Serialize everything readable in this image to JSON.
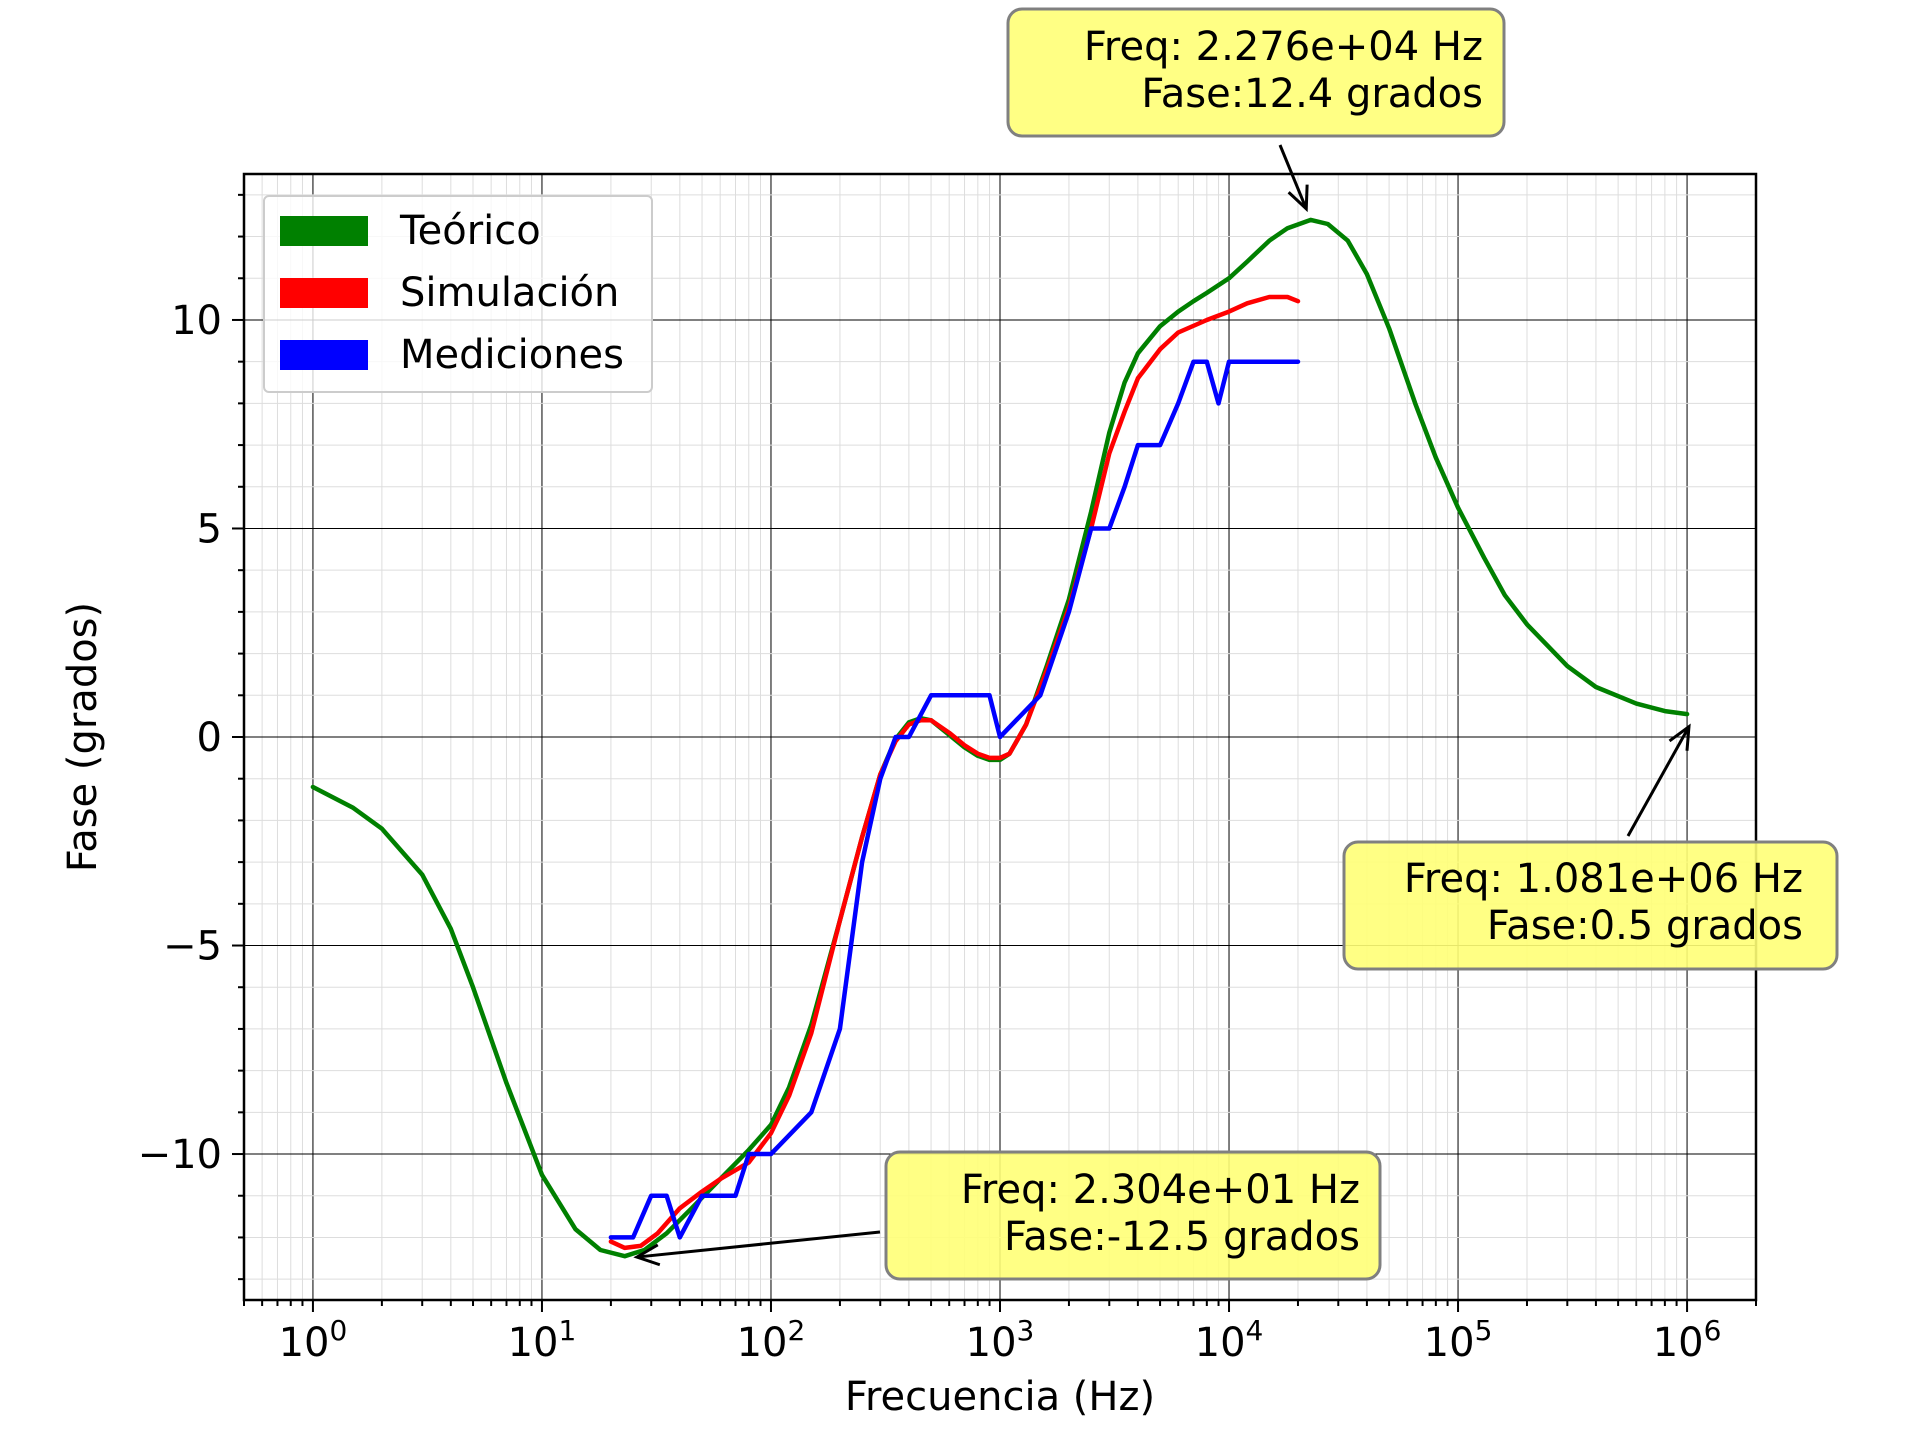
{
  "chart_data": {
    "type": "line",
    "xscale": "log",
    "xlabel": "Frecuencia (Hz)",
    "ylabel": "Fase (grados)",
    "xlim": [
      0.5,
      2000000
    ],
    "ylim": [
      -13.5,
      13.5
    ],
    "grid": "major and minor",
    "legend_position": "top-left",
    "x_ticks": [
      {
        "value": 1,
        "base": "10",
        "exp": "0"
      },
      {
        "value": 10,
        "base": "10",
        "exp": "1"
      },
      {
        "value": 100,
        "base": "10",
        "exp": "2"
      },
      {
        "value": 1000,
        "base": "10",
        "exp": "3"
      },
      {
        "value": 10000,
        "base": "10",
        "exp": "4"
      },
      {
        "value": 100000,
        "base": "10",
        "exp": "5"
      },
      {
        "value": 1000000,
        "base": "10",
        "exp": "6"
      }
    ],
    "y_ticks": [
      {
        "value": -10,
        "label": "−10"
      },
      {
        "value": -5,
        "label": "−5"
      },
      {
        "value": 0,
        "label": "0"
      },
      {
        "value": 5,
        "label": "5"
      },
      {
        "value": 10,
        "label": "10"
      }
    ],
    "series": [
      {
        "name": "Teórico",
        "color": "#008000",
        "x": [
          1,
          1.5,
          2,
          3,
          4,
          5,
          7,
          10,
          14,
          18,
          23,
          28,
          35,
          45,
          60,
          80,
          100,
          120,
          150,
          200,
          250,
          300,
          350,
          400,
          450,
          500,
          600,
          700,
          800,
          900,
          1000,
          1100,
          1300,
          1600,
          2000,
          2500,
          3000,
          3500,
          4000,
          5000,
          6000,
          7000,
          8000,
          10000,
          12000,
          15000,
          18000,
          22760,
          27000,
          33000,
          40000,
          50000,
          65000,
          80000,
          100000,
          130000,
          160000,
          200000,
          300000,
          400000,
          600000,
          800000,
          1000000
        ],
        "y": [
          -1.2,
          -1.7,
          -2.2,
          -3.3,
          -4.6,
          -6.0,
          -8.3,
          -10.5,
          -11.8,
          -12.3,
          -12.45,
          -12.3,
          -11.9,
          -11.3,
          -10.6,
          -9.9,
          -9.3,
          -8.4,
          -6.9,
          -4.4,
          -2.4,
          -0.9,
          -0.05,
          0.35,
          0.45,
          0.4,
          0.05,
          -0.25,
          -0.45,
          -0.55,
          -0.55,
          -0.4,
          0.3,
          1.7,
          3.3,
          5.4,
          7.3,
          8.5,
          9.2,
          9.85,
          10.2,
          10.45,
          10.65,
          11.0,
          11.4,
          11.9,
          12.2,
          12.4,
          12.3,
          11.9,
          11.1,
          9.8,
          8.0,
          6.7,
          5.5,
          4.3,
          3.4,
          2.7,
          1.7,
          1.2,
          0.8,
          0.62,
          0.55
        ]
      },
      {
        "name": "Simulación",
        "color": "#ff0000",
        "x": [
          20,
          23,
          27,
          32,
          40,
          50,
          60,
          80,
          100,
          120,
          150,
          200,
          250,
          300,
          350,
          400,
          450,
          500,
          600,
          700,
          800,
          900,
          1000,
          1100,
          1300,
          1600,
          2000,
          2500,
          3000,
          3500,
          4000,
          5000,
          6000,
          8000,
          10000,
          12000,
          15000,
          18000,
          20000
        ],
        "y": [
          -12.1,
          -12.25,
          -12.2,
          -11.9,
          -11.3,
          -10.9,
          -10.6,
          -10.2,
          -9.5,
          -8.6,
          -7.1,
          -4.4,
          -2.4,
          -0.9,
          -0.1,
          0.3,
          0.4,
          0.4,
          0.1,
          -0.2,
          -0.4,
          -0.5,
          -0.5,
          -0.4,
          0.3,
          1.6,
          3.1,
          5.0,
          6.8,
          7.8,
          8.6,
          9.3,
          9.7,
          10.0,
          10.2,
          10.4,
          10.55,
          10.55,
          10.45
        ]
      },
      {
        "name": "Mediciones",
        "color": "#0000ff",
        "x": [
          20,
          25,
          30,
          35,
          40,
          50,
          70,
          80,
          100,
          150,
          200,
          250,
          300,
          350,
          400,
          500,
          700,
          900,
          1000,
          1500,
          2000,
          2500,
          3000,
          3500,
          4000,
          5000,
          6000,
          7000,
          8000,
          9000,
          10000,
          15000,
          20000
        ],
        "y": [
          -12,
          -12,
          -11,
          -11,
          -12,
          -11,
          -11,
          -10,
          -10,
          -9,
          -7,
          -3,
          -1,
          0,
          0,
          1,
          1,
          1,
          0,
          1,
          3,
          5,
          5,
          6,
          7,
          7,
          8,
          9,
          9,
          8,
          9,
          9,
          9
        ]
      }
    ],
    "annotations": [
      {
        "text": [
          "Freq: 2.276e+04  Hz",
          "Fase:12.4 grados"
        ],
        "point": [
          22760,
          12.4
        ]
      },
      {
        "text": [
          "Freq: 1.081e+06  Hz",
          "Fase:0.5 grados"
        ],
        "point": [
          1081000,
          0.5
        ]
      },
      {
        "text": [
          "Freq: 2.304e+01  Hz",
          "Fase:-12.5 grados"
        ],
        "point": [
          23.04,
          -12.5
        ]
      }
    ],
    "annotation_style": {
      "face": "#ffff77",
      "edge": "#808080"
    }
  }
}
